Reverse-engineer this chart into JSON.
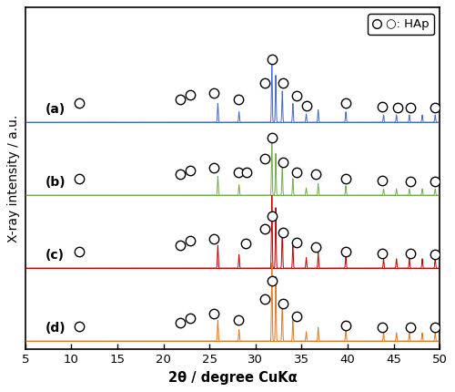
{
  "x_min": 5,
  "x_max": 50,
  "x_ticks": [
    5,
    10,
    15,
    20,
    25,
    30,
    35,
    40,
    45,
    50
  ],
  "xlabel": "2θ / degree CuKα",
  "ylabel": "X-ray intensity / a.u.",
  "colors": [
    "#4169c8",
    "#70ad47",
    "#c00000",
    "#e07820"
  ],
  "display_labels": [
    "(a)",
    "(b)",
    "(c)",
    "(d)"
  ],
  "peak_data": {
    "a": {
      "positions": [
        25.9,
        28.2,
        31.77,
        32.19,
        32.9,
        34.05,
        35.5,
        36.8,
        39.8,
        43.9,
        45.3,
        46.7,
        48.1,
        49.5
      ],
      "heights": [
        0.18,
        0.1,
        0.55,
        0.45,
        0.3,
        0.18,
        0.08,
        0.12,
        0.1,
        0.07,
        0.07,
        0.07,
        0.07,
        0.07
      ]
    },
    "b": {
      "positions": [
        25.9,
        28.2,
        31.77,
        32.19,
        32.9,
        34.05,
        35.5,
        36.8,
        39.8,
        43.9,
        45.3,
        46.7,
        48.1,
        49.5
      ],
      "heights": [
        0.18,
        0.1,
        0.5,
        0.4,
        0.27,
        0.16,
        0.07,
        0.11,
        0.09,
        0.06,
        0.06,
        0.06,
        0.06,
        0.06
      ]
    },
    "c": {
      "positions": [
        25.9,
        28.2,
        31.77,
        32.19,
        32.9,
        34.05,
        35.5,
        36.8,
        39.8,
        43.9,
        45.3,
        46.7,
        48.1,
        49.5
      ],
      "heights": [
        0.22,
        0.13,
        0.7,
        0.58,
        0.38,
        0.22,
        0.1,
        0.15,
        0.12,
        0.09,
        0.09,
        0.09,
        0.09,
        0.09
      ]
    },
    "d": {
      "positions": [
        25.9,
        28.2,
        31.77,
        32.19,
        32.9,
        34.05,
        35.5,
        36.8,
        39.8,
        43.9,
        45.3,
        46.7,
        48.1,
        49.5
      ],
      "heights": [
        0.2,
        0.11,
        0.75,
        0.62,
        0.4,
        0.2,
        0.09,
        0.13,
        0.11,
        0.08,
        0.08,
        0.08,
        0.08,
        0.08
      ]
    }
  },
  "hap_positions": {
    "a": [
      10.8,
      21.8,
      22.9,
      25.5,
      28.1,
      31.0,
      31.8,
      33.0,
      34.5,
      35.5,
      39.8,
      43.8,
      45.4,
      46.8,
      49.5
    ],
    "b": [
      10.8,
      21.8,
      22.9,
      25.5,
      28.1,
      29.0,
      31.0,
      31.8,
      33.0,
      34.5,
      36.5,
      39.8,
      43.8,
      46.8,
      49.5
    ],
    "c": [
      10.8,
      21.8,
      22.9,
      25.5,
      28.9,
      31.0,
      31.8,
      33.0,
      34.5,
      36.5,
      39.8,
      43.8,
      46.8,
      49.5
    ],
    "d": [
      10.8,
      21.8,
      22.9,
      25.5,
      28.1,
      31.0,
      31.8,
      33.0,
      34.5,
      39.8,
      43.8,
      46.8,
      49.5
    ]
  },
  "hap_marker_heights": {
    "a": [
      0.18,
      0.22,
      0.26,
      0.28,
      0.22,
      0.38,
      0.6,
      0.38,
      0.25,
      0.16,
      0.18,
      0.15,
      0.14,
      0.14,
      0.14
    ],
    "b": [
      0.16,
      0.2,
      0.24,
      0.26,
      0.22,
      0.22,
      0.35,
      0.55,
      0.32,
      0.22,
      0.2,
      0.16,
      0.14,
      0.13,
      0.13
    ],
    "c": [
      0.16,
      0.22,
      0.26,
      0.28,
      0.24,
      0.38,
      0.5,
      0.34,
      0.25,
      0.2,
      0.16,
      0.14,
      0.14,
      0.13
    ],
    "d": [
      0.14,
      0.18,
      0.22,
      0.26,
      0.2,
      0.4,
      0.58,
      0.36,
      0.24,
      0.15,
      0.13,
      0.13,
      0.13
    ]
  },
  "offsets": [
    2.1,
    1.4,
    0.7,
    0.0
  ],
  "y_lim": [
    -0.08,
    3.2
  ],
  "background_color": "#ffffff",
  "marker_size": 7.5,
  "peak_sigma": 0.045,
  "legend_text": "○: HAp"
}
